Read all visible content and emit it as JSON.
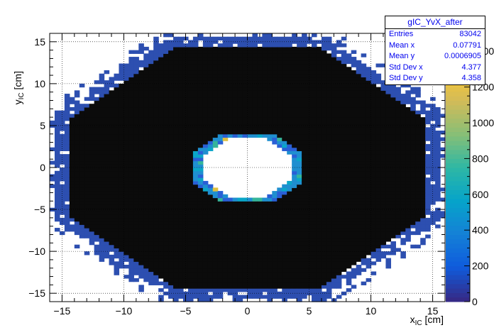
{
  "chart_data": {
    "type": "heatmap",
    "title": "",
    "xlabel": "x",
    "xlabel_sub": "IC",
    "xlabel_unit": " [cm]",
    "ylabel": "y",
    "ylabel_sub": "IC",
    "ylabel_unit": " [cm]",
    "xlim": [
      -16,
      16
    ],
    "ylim": [
      -16,
      16
    ],
    "x_ticks": [
      -15,
      -10,
      -5,
      0,
      5,
      10,
      15
    ],
    "y_ticks": [
      -15,
      -10,
      -5,
      0,
      5,
      10,
      15
    ],
    "grid": true,
    "colorbar": {
      "min": 0,
      "max": 1500,
      "ticks": [
        "0",
        "200",
        "400",
        "600",
        "800",
        "1000",
        "1200",
        "1400"
      ],
      "palette": [
        "#352a87",
        "#0f5cdd",
        "#1481d6",
        "#06a4ca",
        "#2eb7a4",
        "#87bf77",
        "#d1bb59",
        "#fec832",
        "#f9fb0e"
      ]
    },
    "regions": {
      "outer_octagon_edge": 14.6,
      "outer_octagon_diag": 20.3,
      "inner_ring_outer_edge": 4.4,
      "inner_ring_inner_edge": 3.6,
      "black_fill_color": "#0b0b0b",
      "ring_colors": [
        "#1f8fd0",
        "#2a5fd6",
        "#0aa6c8",
        "#35b59a",
        "#e0c040"
      ],
      "edge_color": "#2d4fb0"
    },
    "stats": {
      "name": "gIC_YvX_after",
      "rows": [
        {
          "label": "Entries",
          "value": "83042"
        },
        {
          "label": "Mean x",
          "value": "0.07791"
        },
        {
          "label": "Mean y",
          "value": "0.0006905"
        },
        {
          "label": "Std Dev x",
          "value": "4.377"
        },
        {
          "label": "Std Dev y",
          "value": "4.358"
        }
      ]
    }
  }
}
